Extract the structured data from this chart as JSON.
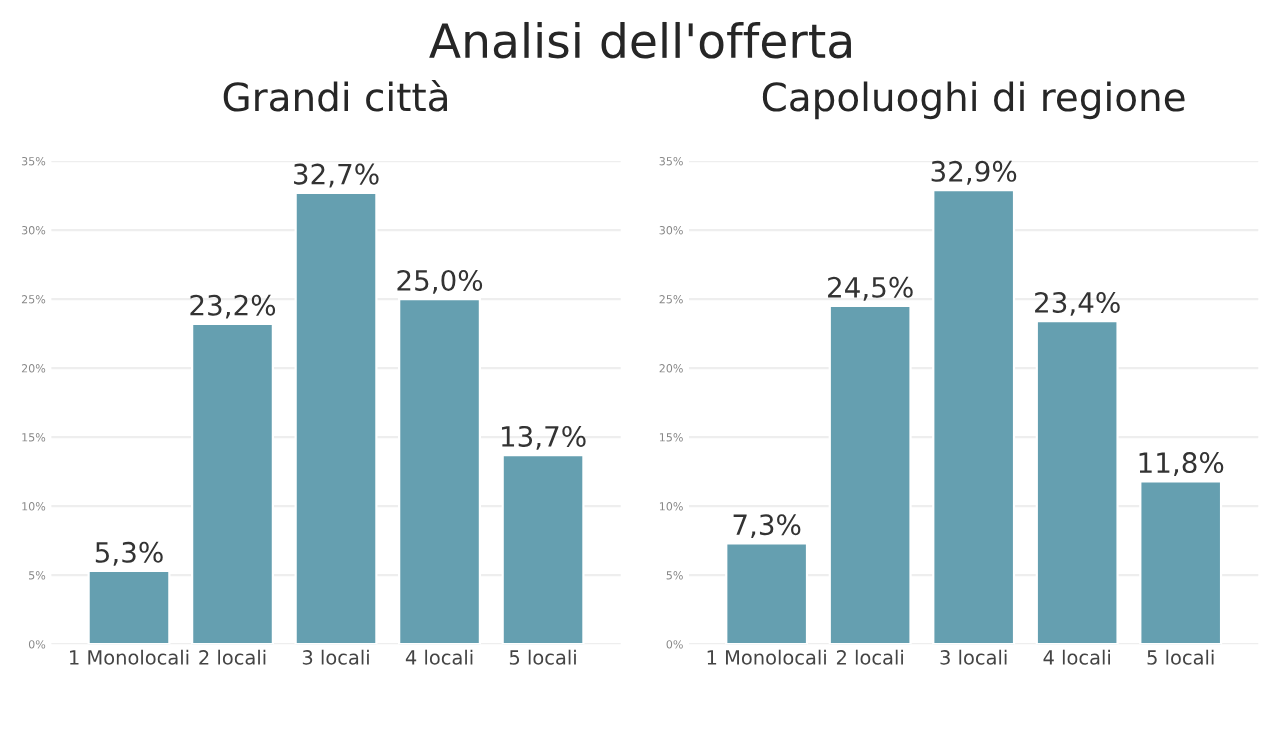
{
  "chart_data": [
    {
      "type": "other",
      "title": "Analisi dell'offerta"
    },
    {
      "type": "bar",
      "title": "Grandi città",
      "categories": [
        "1 Monolocali",
        "2 locali",
        "3 locali",
        "4 locali",
        "5 locali"
      ],
      "values": [
        5.3,
        23.2,
        32.7,
        25.0,
        13.7
      ],
      "value_labels": [
        "5,3%",
        "23,2%",
        "32,7%",
        "25,0%",
        "13,7%"
      ],
      "color": "#659fb0",
      "ylim": [
        0,
        35
      ],
      "yticks": [
        {
          "value": 0,
          "label": "0%"
        },
        {
          "value": 5,
          "label": "5%"
        },
        {
          "value": 10,
          "label": "10%"
        },
        {
          "value": 15,
          "label": "15%"
        },
        {
          "value": 20,
          "label": "20%"
        },
        {
          "value": 25,
          "label": "25%"
        },
        {
          "value": 30,
          "label": "30%"
        },
        {
          "value": 35,
          "label": "35%"
        }
      ],
      "grid": "y"
    },
    {
      "type": "bar",
      "title": "Capoluoghi di regione",
      "categories": [
        "1 Monolocali",
        "2 locali",
        "3 locali",
        "4 locali",
        "5 locali"
      ],
      "values": [
        7.3,
        24.5,
        32.9,
        23.4,
        11.8
      ],
      "value_labels": [
        "7,3%",
        "24,5%",
        "32,9%",
        "23,4%",
        "11,8%"
      ],
      "color": "#659fb0",
      "ylim": [
        0,
        35
      ],
      "yticks": [
        {
          "value": 0,
          "label": "0%"
        },
        {
          "value": 5,
          "label": "5%"
        },
        {
          "value": 10,
          "label": "10%"
        },
        {
          "value": 15,
          "label": "15%"
        },
        {
          "value": 20,
          "label": "20%"
        },
        {
          "value": 25,
          "label": "25%"
        },
        {
          "value": 30,
          "label": "30%"
        },
        {
          "value": 35,
          "label": "35%"
        }
      ],
      "grid": "y"
    }
  ]
}
